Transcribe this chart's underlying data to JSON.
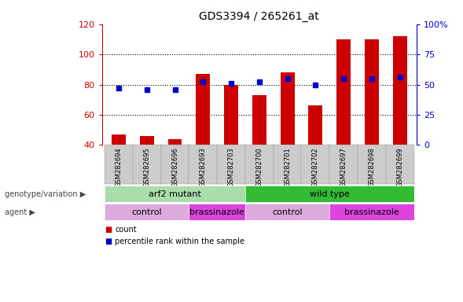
{
  "title": "GDS3394 / 265261_at",
  "samples": [
    "GSM282694",
    "GSM282695",
    "GSM282696",
    "GSM282693",
    "GSM282703",
    "GSM282700",
    "GSM282701",
    "GSM282702",
    "GSM282697",
    "GSM282698",
    "GSM282699"
  ],
  "counts": [
    47,
    46,
    44,
    87,
    80,
    73,
    88,
    66,
    110,
    110,
    112
  ],
  "percentile_ranks": [
    47,
    46,
    46,
    52,
    51,
    52,
    55,
    50,
    55,
    55,
    56
  ],
  "ylim_left": [
    40,
    120
  ],
  "ylim_right": [
    0,
    100
  ],
  "yticks_left": [
    40,
    60,
    80,
    100,
    120
  ],
  "yticks_right": [
    0,
    25,
    50,
    75,
    100
  ],
  "ytick_labels_right": [
    "0",
    "25",
    "50",
    "75",
    "100%"
  ],
  "bar_color": "#cc0000",
  "dot_color": "#0000cc",
  "bar_bottom": 40,
  "genotype_groups": [
    {
      "label": "arf2 mutant",
      "start": 0,
      "end": 4,
      "color": "#aaddaa"
    },
    {
      "label": "wild type",
      "start": 5,
      "end": 10,
      "color": "#33bb33"
    }
  ],
  "agent_groups": [
    {
      "label": "control",
      "start": 0,
      "end": 2,
      "color": "#ddaadd"
    },
    {
      "label": "brassinazole",
      "start": 3,
      "end": 4,
      "color": "#dd44dd"
    },
    {
      "label": "control",
      "start": 5,
      "end": 7,
      "color": "#ddaadd"
    },
    {
      "label": "brassinazole",
      "start": 8,
      "end": 10,
      "color": "#dd44dd"
    }
  ],
  "legend_items": [
    {
      "label": "count",
      "color": "#cc0000"
    },
    {
      "label": "percentile rank within the sample",
      "color": "#0000cc"
    }
  ],
  "bg_color": "#ffffff",
  "grid_color": "#000000",
  "left_axis_color": "#cc0000",
  "right_axis_color": "#0000cc",
  "tick_label_bg": "#cccccc"
}
